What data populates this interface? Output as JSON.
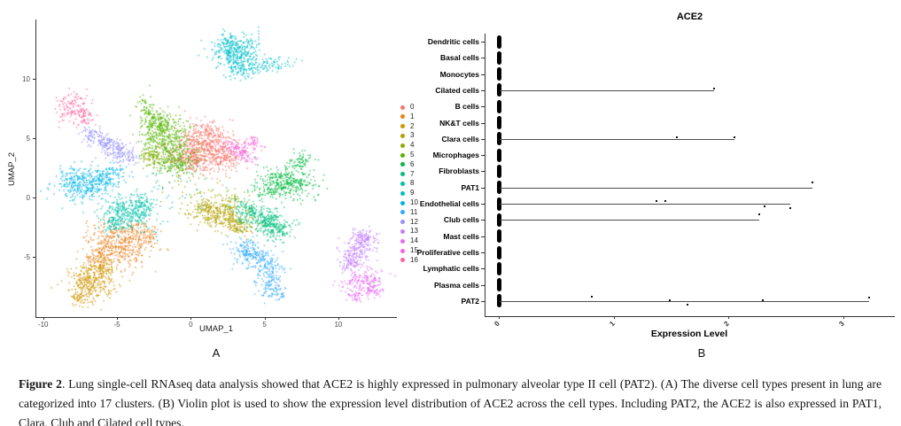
{
  "panel_a": {
    "label": "A",
    "xlabel": "UMAP_1",
    "ylabel": "UMAP_2"
  },
  "panel_b": {
    "label": "B",
    "title": "ACE2",
    "xlabel": "Expression Level"
  },
  "caption": {
    "title": "Figure 2",
    "body": ".  Lung single-cell RNAseq data analysis showed that ACE2 is highly expressed in pulmonary alveolar type II cell (PAT2). (A) The diverse cell types present in lung are categorized into 17 clusters. (B) Violin plot is used to show the expression level distribution of ACE2 across the cell types. Including PAT2, the ACE2 is also expressed in PAT1, Clara, Club and Cilated cell types."
  },
  "chart_data": [
    {
      "type": "scatter",
      "title": "",
      "xlabel": "UMAP_1",
      "ylabel": "UMAP_2",
      "xlim": [
        -10.5,
        13.8
      ],
      "ylim": [
        -9.5,
        14.5
      ],
      "xticks": [
        -10,
        -5,
        0,
        5,
        10
      ],
      "yticks": [
        -5,
        0,
        5,
        10
      ],
      "grid": false,
      "legend_position": "right",
      "clusters": [
        {
          "id": "0",
          "color": "#F8766D",
          "blobs": [
            [
              1.0,
              4.3,
              1.15,
              0.95,
              520,
              -15
            ],
            [
              0.0,
              3.1,
              0.7,
              0.5,
              140,
              -25
            ],
            [
              2.3,
              3.3,
              0.5,
              0.45,
              90,
              0
            ],
            [
              1.2,
              5.5,
              0.6,
              0.4,
              70,
              0
            ]
          ]
        },
        {
          "id": "1",
          "color": "#E8821E",
          "blobs": [
            [
              -5.0,
              -3.9,
              1.15,
              0.8,
              380,
              -30
            ],
            [
              -3.4,
              -3.0,
              0.7,
              0.5,
              130,
              -25
            ],
            [
              -6.2,
              -5.0,
              0.5,
              0.5,
              80,
              -10
            ]
          ]
        },
        {
          "id": "2",
          "color": "#CE9500",
          "blobs": [
            [
              -6.8,
              -7.1,
              0.8,
              0.8,
              300,
              -35
            ],
            [
              -5.9,
              -5.9,
              0.5,
              0.5,
              90,
              0
            ],
            [
              -7.5,
              -8.4,
              0.4,
              0.4,
              60,
              0
            ]
          ]
        },
        {
          "id": "3",
          "color": "#B3A000",
          "blobs": [
            [
              2.0,
              -1.5,
              0.95,
              0.6,
              300,
              -18
            ],
            [
              3.2,
              -2.3,
              0.5,
              0.4,
              80,
              -25
            ],
            [
              1.0,
              -0.8,
              0.4,
              0.35,
              60,
              0
            ]
          ]
        },
        {
          "id": "4",
          "color": "#8CAB00",
          "blobs": [
            [
              -2.6,
              3.4,
              0.5,
              0.45,
              90,
              0
            ],
            [
              0.5,
              0.5,
              1.2,
              0.8,
              50,
              0
            ],
            [
              2.8,
              -0.3,
              0.6,
              0.4,
              40,
              0
            ]
          ]
        },
        {
          "id": "5",
          "color": "#56B400",
          "blobs": [
            [
              -1.6,
              4.8,
              0.9,
              1.15,
              430,
              5
            ],
            [
              -2.3,
              6.2,
              0.5,
              0.55,
              110,
              0
            ],
            [
              -1.0,
              3.0,
              0.7,
              0.55,
              150,
              -10
            ],
            [
              -3.0,
              7.3,
              0.25,
              0.6,
              60,
              15
            ]
          ]
        },
        {
          "id": "6",
          "color": "#00BA42",
          "blobs": [
            [
              6.5,
              1.3,
              1.0,
              0.62,
              300,
              -18
            ],
            [
              7.4,
              2.9,
              0.4,
              0.5,
              70,
              -10
            ],
            [
              5.3,
              0.6,
              0.5,
              0.38,
              70,
              0
            ]
          ]
        },
        {
          "id": "7",
          "color": "#00BF7E",
          "blobs": [
            [
              4.9,
              -1.9,
              0.95,
              0.6,
              280,
              -30
            ],
            [
              5.9,
              -2.7,
              0.5,
              0.4,
              80,
              -20
            ],
            [
              3.8,
              -1.0,
              0.45,
              0.38,
              70,
              0
            ]
          ]
        },
        {
          "id": "8",
          "color": "#00C1A9",
          "blobs": [
            [
              -4.3,
              -1.4,
              0.9,
              0.7,
              280,
              -25
            ],
            [
              -3.2,
              -0.6,
              0.5,
              0.45,
              90,
              -20
            ],
            [
              -5.2,
              -2.2,
              0.45,
              0.38,
              60,
              0
            ],
            [
              -1.3,
              1.2,
              1.8,
              1.1,
              45,
              0
            ]
          ]
        },
        {
          "id": "9",
          "color": "#00BFC9",
          "blobs": [
            [
              3.1,
              12.3,
              0.85,
              0.72,
              300,
              0
            ],
            [
              3.4,
              11.1,
              0.55,
              0.6,
              110,
              0
            ],
            [
              5.3,
              11.2,
              0.95,
              0.3,
              90,
              8
            ],
            [
              2.5,
              13.2,
              0.4,
              0.3,
              40,
              0
            ]
          ]
        },
        {
          "id": "10",
          "color": "#00B5E9",
          "blobs": [
            [
              -6.9,
              1.1,
              1.1,
              0.68,
              340,
              8
            ],
            [
              -5.5,
              2.1,
              0.55,
              0.3,
              70,
              25
            ],
            [
              -8.1,
              1.6,
              0.4,
              0.4,
              50,
              0
            ]
          ]
        },
        {
          "id": "11",
          "color": "#2FA9FF",
          "blobs": [
            [
              4.4,
              -5.0,
              0.8,
              0.6,
              180,
              -35
            ],
            [
              5.3,
              -6.8,
              0.5,
              0.8,
              120,
              -15
            ],
            [
              5.9,
              -8.1,
              0.3,
              0.3,
              40,
              0
            ],
            [
              3.7,
              -4.2,
              0.4,
              0.35,
              50,
              0
            ]
          ]
        },
        {
          "id": "12",
          "color": "#9590FF",
          "blobs": [
            [
              -5.8,
              4.5,
              0.8,
              0.45,
              160,
              -30
            ],
            [
              -4.6,
              3.6,
              0.55,
              0.4,
              80,
              -25
            ],
            [
              -6.8,
              5.3,
              0.3,
              0.3,
              40,
              -40
            ]
          ]
        },
        {
          "id": "13",
          "color": "#C27FFF",
          "blobs": [
            [
              11.3,
              -4.3,
              0.55,
              0.85,
              200,
              -12
            ],
            [
              11.9,
              -3.4,
              0.35,
              0.4,
              60,
              0
            ],
            [
              10.8,
              -5.5,
              0.32,
              0.35,
              50,
              0
            ]
          ]
        },
        {
          "id": "14",
          "color": "#E56DF5",
          "blobs": [
            [
              11.7,
              -7.0,
              0.7,
              0.5,
              150,
              22
            ],
            [
              12.4,
              -7.7,
              0.4,
              0.35,
              60,
              0
            ],
            [
              11.2,
              -8.2,
              0.3,
              0.3,
              40,
              0
            ]
          ]
        },
        {
          "id": "15",
          "color": "#F763DC",
          "blobs": [
            [
              3.3,
              3.9,
              0.75,
              0.3,
              120,
              -38
            ],
            [
              4.3,
              4.6,
              0.32,
              0.26,
              40,
              -30
            ]
          ]
        },
        {
          "id": "16",
          "color": "#FF639E",
          "blobs": [
            [
              -8.0,
              7.7,
              0.5,
              0.6,
              120,
              -50
            ],
            [
              -7.2,
              6.7,
              0.3,
              0.4,
              50,
              -40
            ]
          ]
        }
      ]
    },
    {
      "type": "violin",
      "title": "ACE2",
      "xlabel": "Expression Level",
      "xticks": [
        0,
        1,
        2,
        3
      ],
      "xlim": [
        -0.15,
        3.45
      ],
      "rows": [
        {
          "label": "Dendritic cells",
          "zero_bar": true,
          "line_to": null,
          "points": []
        },
        {
          "label": "Basal cells",
          "zero_bar": true,
          "line_to": null,
          "points": []
        },
        {
          "label": "Monocytes",
          "zero_bar": true,
          "line_to": null,
          "points": []
        },
        {
          "label": "Cilated cells",
          "zero_bar": true,
          "line_to": 1.87,
          "points": [
            {
              "x": 1.87,
              "dy": -2
            }
          ]
        },
        {
          "label": "B cells",
          "zero_bar": true,
          "line_to": null,
          "points": []
        },
        {
          "label": "NK&T cells",
          "zero_bar": true,
          "line_to": null,
          "points": []
        },
        {
          "label": "Clara cells",
          "zero_bar": true,
          "line_to": 2.05,
          "points": [
            {
              "x": 1.55,
              "dy": -2
            },
            {
              "x": 2.05,
              "dy": -2
            }
          ]
        },
        {
          "label": "Microphages",
          "zero_bar": true,
          "line_to": null,
          "points": []
        },
        {
          "label": "Fibroblasts",
          "zero_bar": true,
          "line_to": null,
          "points": []
        },
        {
          "label": "PAT1",
          "zero_bar": true,
          "line_to": 2.73,
          "points": [
            {
              "x": 2.73,
              "dy": -6
            }
          ]
        },
        {
          "label": "Endothelial cells",
          "zero_bar": true,
          "line_to": 2.54,
          "points": [
            {
              "x": 1.37,
              "dy": -3
            },
            {
              "x": 1.45,
              "dy": -3
            },
            {
              "x": 2.31,
              "dy": 3
            },
            {
              "x": 2.54,
              "dy": 5
            }
          ]
        },
        {
          "label": "Club cells",
          "zero_bar": true,
          "line_to": 2.27,
          "points": [
            {
              "x": 2.27,
              "dy": -6
            }
          ]
        },
        {
          "label": "Mast cells",
          "zero_bar": true,
          "line_to": null,
          "points": []
        },
        {
          "label": "Proliferative cells",
          "zero_bar": true,
          "line_to": null,
          "points": []
        },
        {
          "label": "Lymphatic cells",
          "zero_bar": true,
          "line_to": null,
          "points": []
        },
        {
          "label": "Plasma cells",
          "zero_bar": true,
          "line_to": null,
          "points": []
        },
        {
          "label": "PAT2",
          "zero_bar": true,
          "line_to": 3.22,
          "points": [
            {
              "x": 0.81,
              "dy": -5
            },
            {
              "x": 1.49,
              "dy": -1
            },
            {
              "x": 1.64,
              "dy": 4
            },
            {
              "x": 2.3,
              "dy": -1
            },
            {
              "x": 3.22,
              "dy": -4
            }
          ]
        }
      ]
    }
  ]
}
